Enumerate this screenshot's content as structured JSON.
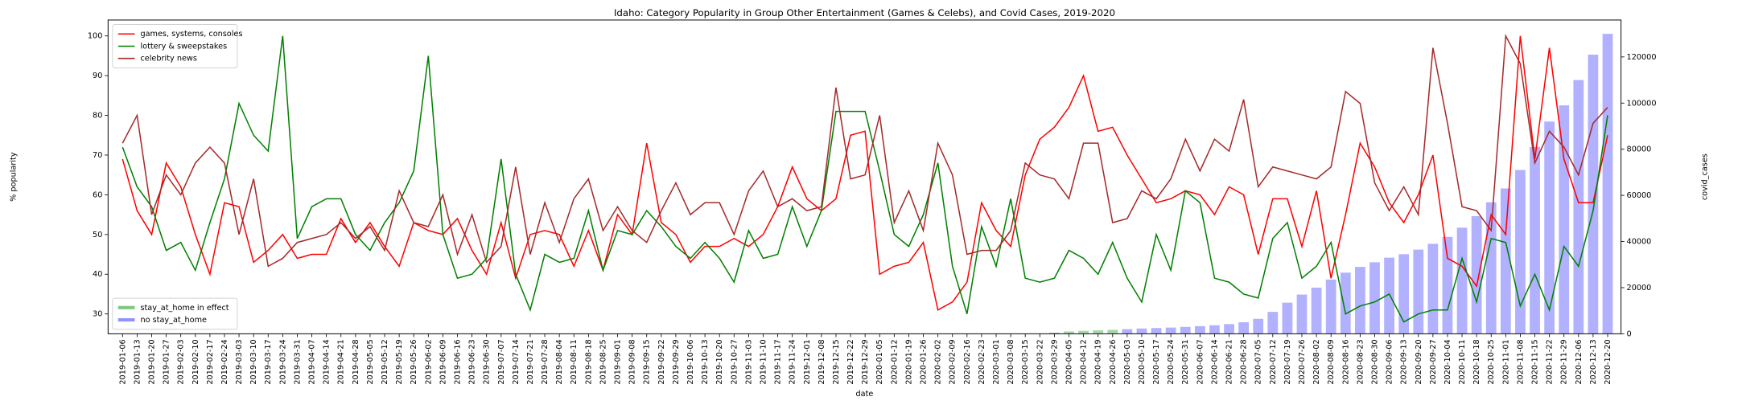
{
  "chart_data": {
    "type": "line",
    "title": "Idaho: Category Popularity in Group Other Entertainment (Games & Celebs), and Covid Cases, 2019-2020",
    "x_label": "date",
    "y_label": "% popularity",
    "y2_label": "covid_cases",
    "categories": [
      "2019-01-06",
      "2019-01-13",
      "2019-01-20",
      "2019-01-27",
      "2019-02-03",
      "2019-02-10",
      "2019-02-17",
      "2019-02-24",
      "2019-03-03",
      "2019-03-10",
      "2019-03-17",
      "2019-03-24",
      "2019-03-31",
      "2019-04-07",
      "2019-04-14",
      "2019-04-21",
      "2019-04-28",
      "2019-05-05",
      "2019-05-12",
      "2019-05-19",
      "2019-05-26",
      "2019-06-02",
      "2019-06-09",
      "2019-06-16",
      "2019-06-23",
      "2019-06-30",
      "2019-07-07",
      "2019-07-14",
      "2019-07-21",
      "2019-07-28",
      "2019-08-04",
      "2019-08-11",
      "2019-08-18",
      "2019-08-25",
      "2019-09-01",
      "2019-09-08",
      "2019-09-15",
      "2019-09-22",
      "2019-09-29",
      "2019-10-06",
      "2019-10-13",
      "2019-10-20",
      "2019-10-27",
      "2019-11-03",
      "2019-11-10",
      "2019-11-17",
      "2019-11-24",
      "2019-12-01",
      "2019-12-08",
      "2019-12-15",
      "2019-12-22",
      "2019-12-29",
      "2020-01-05",
      "2020-01-12",
      "2020-01-19",
      "2020-01-26",
      "2020-02-02",
      "2020-02-09",
      "2020-02-16",
      "2020-02-23",
      "2020-03-01",
      "2020-03-08",
      "2020-03-15",
      "2020-03-22",
      "2020-03-29",
      "2020-04-05",
      "2020-04-12",
      "2020-04-19",
      "2020-04-26",
      "2020-05-03",
      "2020-05-10",
      "2020-05-17",
      "2020-05-24",
      "2020-05-31",
      "2020-06-07",
      "2020-06-14",
      "2020-06-21",
      "2020-06-28",
      "2020-07-05",
      "2020-07-12",
      "2020-07-19",
      "2020-07-26",
      "2020-08-02",
      "2020-08-09",
      "2020-08-16",
      "2020-08-23",
      "2020-08-30",
      "2020-09-06",
      "2020-09-13",
      "2020-09-20",
      "2020-09-27",
      "2020-10-04",
      "2020-10-11",
      "2020-10-18",
      "2020-10-25",
      "2020-11-01",
      "2020-11-08",
      "2020-11-15",
      "2020-11-22",
      "2020-11-29",
      "2020-12-06",
      "2020-12-13",
      "2020-12-20"
    ],
    "series": [
      {
        "name": "games, systems, consoles",
        "color": "#ff0000",
        "values": [
          69,
          56,
          50,
          68,
          62,
          50,
          40,
          58,
          57,
          43,
          46,
          50,
          44,
          45,
          45,
          54,
          48,
          53,
          47,
          42,
          53,
          51,
          50,
          54,
          46,
          40,
          53,
          39,
          50,
          51,
          50,
          42,
          51,
          41,
          55,
          50,
          73,
          53,
          50,
          43,
          47,
          47,
          49,
          47,
          50,
          57,
          67,
          59,
          56,
          59,
          75,
          76,
          40,
          42,
          43,
          48,
          31,
          33,
          38,
          58,
          51,
          47,
          65,
          74,
          77,
          82,
          90,
          76,
          77,
          70,
          64,
          58,
          59,
          61,
          60,
          55,
          62,
          60,
          45,
          59,
          59,
          47,
          61,
          39,
          55,
          73,
          67,
          58,
          53,
          60,
          70,
          44,
          42,
          37,
          55,
          50,
          100,
          69,
          97,
          69,
          58,
          58,
          75
        ]
      },
      {
        "name": "lottery & sweepstakes",
        "color": "#008000",
        "values": [
          72,
          62,
          57,
          46,
          48,
          41,
          53,
          64,
          83,
          75,
          71,
          100,
          49,
          57,
          59,
          59,
          50,
          46,
          53,
          58,
          66,
          95,
          50,
          39,
          40,
          44,
          69,
          40,
          31,
          45,
          43,
          44,
          56,
          41,
          51,
          50,
          56,
          52,
          47,
          44,
          48,
          44,
          38,
          51,
          44,
          45,
          57,
          47,
          56,
          81,
          81,
          81,
          66,
          50,
          47,
          55,
          68,
          42,
          30,
          52,
          42,
          59,
          39,
          38,
          39,
          46,
          44,
          40,
          48,
          39,
          33,
          50,
          41,
          61,
          58,
          39,
          38,
          35,
          34,
          49,
          53,
          39,
          42,
          48,
          30,
          32,
          33,
          35,
          28,
          30,
          31,
          31,
          44,
          33,
          49,
          48,
          32,
          40,
          31,
          47,
          42,
          56,
          80
        ]
      },
      {
        "name": "celebrity news",
        "color": "#a52a2a",
        "values": [
          73,
          80,
          55,
          65,
          60,
          68,
          72,
          68,
          50,
          64,
          42,
          44,
          48,
          49,
          50,
          53,
          49,
          52,
          46,
          61,
          53,
          52,
          60,
          45,
          55,
          43,
          47,
          67,
          45,
          58,
          48,
          59,
          64,
          51,
          57,
          51,
          48,
          56,
          63,
          55,
          58,
          58,
          50,
          61,
          66,
          57,
          59,
          56,
          57,
          87,
          64,
          65,
          80,
          53,
          61,
          51,
          73,
          65,
          45,
          46,
          46,
          51,
          68,
          65,
          64,
          59,
          73,
          73,
          53,
          54,
          61,
          59,
          64,
          74,
          66,
          74,
          71,
          84,
          62,
          67,
          66,
          65,
          64,
          67,
          86,
          83,
          63,
          56,
          62,
          55,
          97,
          78,
          57,
          56,
          51,
          100,
          93,
          68,
          76,
          72,
          65,
          78,
          82
        ]
      }
    ],
    "bar_series": [
      {
        "name": "stay_at_home in effect",
        "color": "#4caf50",
        "axis": "y2",
        "values": [
          null,
          null,
          null,
          null,
          null,
          null,
          null,
          null,
          null,
          null,
          null,
          null,
          null,
          null,
          null,
          null,
          null,
          null,
          null,
          null,
          null,
          null,
          null,
          null,
          null,
          null,
          null,
          null,
          null,
          null,
          null,
          null,
          null,
          null,
          null,
          null,
          null,
          null,
          null,
          null,
          null,
          null,
          null,
          null,
          null,
          null,
          null,
          null,
          null,
          null,
          null,
          null,
          null,
          null,
          null,
          null,
          null,
          null,
          null,
          null,
          null,
          null,
          null,
          null,
          500,
          1000,
          1300,
          1500,
          1700,
          null,
          null,
          null,
          null,
          null,
          null,
          null,
          null,
          null,
          null,
          null,
          null,
          null,
          null,
          null,
          null,
          null,
          null,
          null,
          null,
          null,
          null,
          null,
          null,
          null,
          null,
          null,
          null,
          null,
          null,
          null,
          null,
          null,
          null
        ]
      },
      {
        "name": "no stay_at_home",
        "color": "#6464ff",
        "axis": "y2",
        "values": [
          0,
          0,
          0,
          0,
          0,
          0,
          0,
          0,
          0,
          0,
          0,
          0,
          0,
          0,
          0,
          0,
          0,
          0,
          0,
          0,
          0,
          0,
          0,
          0,
          0,
          0,
          0,
          0,
          0,
          0,
          0,
          0,
          0,
          0,
          0,
          0,
          0,
          0,
          0,
          0,
          0,
          0,
          0,
          0,
          0,
          0,
          0,
          0,
          0,
          0,
          0,
          0,
          0,
          0,
          0,
          0,
          0,
          0,
          0,
          0,
          0,
          0,
          0,
          0,
          null,
          null,
          null,
          null,
          null,
          2000,
          2300,
          2500,
          2700,
          3000,
          3300,
          3700,
          4200,
          5000,
          6500,
          9500,
          13500,
          17000,
          20000,
          23500,
          26500,
          29000,
          31000,
          33000,
          34500,
          36500,
          39000,
          42000,
          46000,
          51000,
          57000,
          63000,
          71000,
          81000,
          92000,
          99000,
          110000,
          121000,
          130000
        ]
      }
    ],
    "ylim": [
      25,
      104
    ],
    "yticks": [
      30,
      40,
      50,
      60,
      70,
      80,
      90,
      100
    ],
    "y2lim": [
      0,
      136000
    ],
    "y2ticks": [
      0,
      20000,
      40000,
      60000,
      80000,
      100000,
      120000
    ],
    "legend": "upper left",
    "bar_legend": "lower left"
  }
}
